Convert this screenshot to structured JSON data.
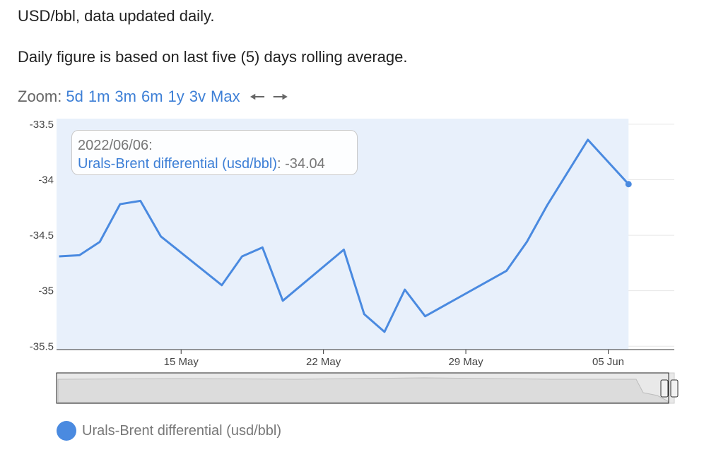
{
  "intro": {
    "line1": "USD/bbl, data updated daily.",
    "line2": "Daily figure is based on last five (5) days rolling average."
  },
  "zoom": {
    "label": "Zoom:",
    "buttons": [
      "5d",
      "1m",
      "3m",
      "6m",
      "1y",
      "3v",
      "Max"
    ],
    "prev_icon": "left-arrow-icon",
    "next_icon": "right-arrow-icon"
  },
  "tooltip": {
    "date": "2022/06/06:",
    "series": "Urals-Brent differential (usd/bbl)",
    "value": ": -34.04"
  },
  "legend": {
    "label": "Urals-Brent differential (usd/bbl)"
  },
  "colors": {
    "line": "#4a8ae0",
    "fill": "#e8f0fb",
    "accent": "#3d7fd6"
  },
  "chart_data": {
    "type": "area",
    "title": "",
    "xlabel": "",
    "ylabel": "",
    "y_ticks": [
      "-33.5",
      "-34",
      "-34.5",
      "-35",
      "-35.5"
    ],
    "y_tick_values": [
      -33.5,
      -34,
      -34.5,
      -35,
      -35.5
    ],
    "ylim": [
      -35.53,
      -33.45
    ],
    "x_ticks": [
      {
        "date": "2022-05-15",
        "label": "15 May"
      },
      {
        "date": "2022-05-22",
        "label": "22 May"
      },
      {
        "date": "2022-05-29",
        "label": "29 May"
      },
      {
        "date": "2022-06-05",
        "label": "05 Jun"
      }
    ],
    "xlim": [
      "2022-05-08T21:00",
      "2022-06-08T06:00"
    ],
    "grid": true,
    "legend": "bottom-left",
    "series": [
      {
        "name": "Urals-Brent differential (usd/bbl)",
        "points": [
          {
            "date": "2022-05-09",
            "value": -34.69
          },
          {
            "date": "2022-05-10",
            "value": -34.68
          },
          {
            "date": "2022-05-11",
            "value": -34.56
          },
          {
            "date": "2022-05-12",
            "value": -34.22
          },
          {
            "date": "2022-05-13",
            "value": -34.19
          },
          {
            "date": "2022-05-14",
            "value": -34.51
          },
          {
            "date": "2022-05-17",
            "value": -34.95
          },
          {
            "date": "2022-05-18",
            "value": -34.69
          },
          {
            "date": "2022-05-19",
            "value": -34.61
          },
          {
            "date": "2022-05-20",
            "value": -35.09
          },
          {
            "date": "2022-05-23",
            "value": -34.63
          },
          {
            "date": "2022-05-24",
            "value": -35.21
          },
          {
            "date": "2022-05-25",
            "value": -35.37
          },
          {
            "date": "2022-05-26",
            "value": -34.99
          },
          {
            "date": "2022-05-27",
            "value": -35.23
          },
          {
            "date": "2022-05-31",
            "value": -34.82
          },
          {
            "date": "2022-06-01",
            "value": -34.56
          },
          {
            "date": "2022-06-02",
            "value": -34.23
          },
          {
            "date": "2022-06-04",
            "value": -33.64
          },
          {
            "date": "2022-06-06",
            "value": -34.04
          }
        ]
      }
    ]
  }
}
